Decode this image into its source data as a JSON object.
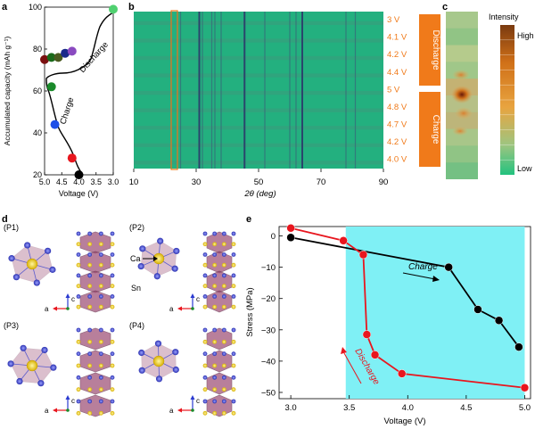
{
  "colors": {
    "heatmap_bg": "#23b07f",
    "orange": "#f07a1a",
    "red": "#e8161e",
    "black": "#000000",
    "cyan": "#7ff0f5",
    "atom_blue": "#4a4fd0",
    "atom_yellow": "#f2d21b",
    "polyhedron": "#9b4a72"
  },
  "panels": {
    "a": "a",
    "b": "b",
    "c": "c",
    "d": "d",
    "e": "e"
  },
  "chart_data": [
    {
      "panel": "a",
      "type": "scatter",
      "xlabel": "Voltage (V)",
      "ylabel": "Accumulated capacity (mAh g⁻¹)",
      "xlim": [
        5.0,
        3.0
      ],
      "ylim": [
        20,
        100
      ],
      "x_ticks": [
        "5.0",
        "4.5",
        "4.0",
        "3.5",
        "3.0"
      ],
      "y_ticks": [
        "20",
        "40",
        "60",
        "80",
        "100"
      ],
      "annotations": [
        "Charge",
        "Discharge"
      ],
      "series": [
        {
          "points": [
            {
              "x": 4.0,
              "y": 20,
              "color": "#000000"
            },
            {
              "x": 4.2,
              "y": 28,
              "color": "#e8161e"
            },
            {
              "x": 4.7,
              "y": 44,
              "color": "#1e4fe8"
            },
            {
              "x": 4.8,
              "y": 62,
              "color": "#1a8a2a"
            },
            {
              "x": 5.0,
              "y": 75,
              "color": "#7a1010"
            },
            {
              "x": 4.8,
              "y": 76,
              "color": "#1a6a1a"
            },
            {
              "x": 4.6,
              "y": 76,
              "color": "#4a5a20"
            },
            {
              "x": 4.4,
              "y": 78,
              "color": "#1a2a8a"
            },
            {
              "x": 4.2,
              "y": 79,
              "color": "#8a4ac0"
            },
            {
              "x": 3.0,
              "y": 99,
              "color": "#50d070"
            }
          ]
        }
      ]
    },
    {
      "panel": "b",
      "type": "heatmap",
      "xlabel": "2θ (deg)",
      "xlim": [
        10,
        90
      ],
      "x_ticks": [
        "10",
        "30",
        "50",
        "70",
        "90"
      ],
      "rows": [
        "3 V",
        "4.1 V",
        "4.2 V",
        "4.4 V",
        "5 V",
        "4.8 V",
        "4.7 V",
        "4.2 V",
        "4.0 V"
      ],
      "side_labels": [
        "Discharge",
        "Charge"
      ],
      "peaks": [
        22,
        24,
        25,
        31,
        32,
        35,
        36,
        38,
        45.5,
        52,
        60,
        62,
        64,
        78,
        81
      ],
      "highlight_range": [
        22,
        24
      ]
    },
    {
      "panel": "c",
      "type": "heatmap",
      "legend_title": "Intensity",
      "legend_high": "High",
      "legend_low": "Low"
    },
    {
      "panel": "e",
      "type": "line",
      "xlabel": "Voltage (V)",
      "ylabel": "Stress (MPa)",
      "xlim": [
        2.9,
        5.05
      ],
      "ylim": [
        -52,
        3
      ],
      "x_ticks": [
        3.0,
        3.5,
        4.0,
        4.5,
        5.0
      ],
      "y_ticks": [
        0,
        -10,
        -20,
        -30,
        -40,
        -50
      ],
      "annotations": [
        "Charge",
        "Discharge"
      ],
      "series": [
        {
          "name": "Charge",
          "color": "#000000",
          "x": [
            3.0,
            4.35,
            4.6,
            4.78,
            4.95
          ],
          "y": [
            -0.5,
            -10,
            -23.5,
            -27,
            -35.5
          ]
        },
        {
          "name": "Discharge",
          "color": "#e8161e",
          "x": [
            5.0,
            3.95,
            3.72,
            3.65,
            3.62,
            3.45,
            3.0
          ],
          "y": [
            -48.5,
            -44,
            -38,
            -31.5,
            -6,
            -1.5,
            2.5
          ]
        }
      ]
    }
  ],
  "structures": {
    "labels": [
      "(P1)",
      "(P2)",
      "(P3)",
      "(P4)"
    ],
    "ca": "Ca",
    "sn": "Sn",
    "axis_a": "a",
    "axis_c": "c"
  }
}
